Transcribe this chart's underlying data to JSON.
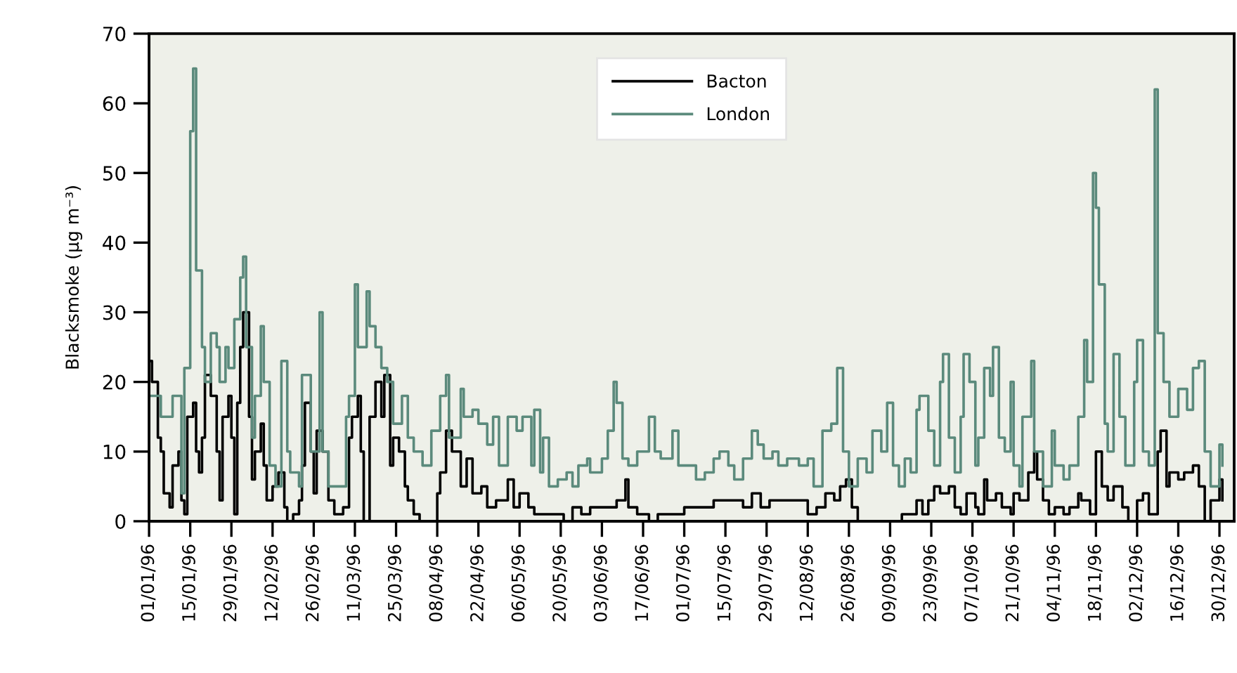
{
  "chart_data": {
    "type": "step",
    "ylabel": "Blacksmoke (µg m⁻³)",
    "xlim": [
      "1996-01-01",
      "1997-01-04"
    ],
    "xticks": [
      {
        "value": "1996-01-01",
        "label": "01/01/96"
      },
      {
        "value": "1996-01-15",
        "label": "15/01/96"
      },
      {
        "value": "1996-01-29",
        "label": "29/01/96"
      },
      {
        "value": "1996-02-12",
        "label": "12/02/96"
      },
      {
        "value": "1996-02-26",
        "label": "26/02/96"
      },
      {
        "value": "1996-03-11",
        "label": "11/03/96"
      },
      {
        "value": "1996-03-25",
        "label": "25/03/96"
      },
      {
        "value": "1996-04-08",
        "label": "08/04/96"
      },
      {
        "value": "1996-04-22",
        "label": "22/04/96"
      },
      {
        "value": "1996-05-06",
        "label": "06/05/96"
      },
      {
        "value": "1996-05-20",
        "label": "20/05/96"
      },
      {
        "value": "1996-06-03",
        "label": "03/06/96"
      },
      {
        "value": "1996-06-17",
        "label": "17/06/96"
      },
      {
        "value": "1996-07-01",
        "label": "01/07/96"
      },
      {
        "value": "1996-07-15",
        "label": "15/07/96"
      },
      {
        "value": "1996-07-29",
        "label": "29/07/96"
      },
      {
        "value": "1996-08-12",
        "label": "12/08/96"
      },
      {
        "value": "1996-08-26",
        "label": "26/08/96"
      },
      {
        "value": "1996-09-09",
        "label": "09/09/96"
      },
      {
        "value": "1996-09-23",
        "label": "23/09/96"
      },
      {
        "value": "1996-10-07",
        "label": "07/10/96"
      },
      {
        "value": "1996-10-21",
        "label": "21/10/96"
      },
      {
        "value": "1996-11-04",
        "label": "04/11/96"
      },
      {
        "value": "1996-11-18",
        "label": "18/11/96"
      },
      {
        "value": "1996-12-02",
        "label": "02/12/96"
      },
      {
        "value": "1996-12-16",
        "label": "16/12/96"
      },
      {
        "value": "1996-12-30",
        "label": "30/12/96"
      }
    ],
    "ylim": [
      0,
      70
    ],
    "yticks": [
      0,
      10,
      20,
      30,
      40,
      50,
      60,
      70
    ],
    "legend": "top",
    "series": [
      {
        "name": "Bacton",
        "color": "#000000",
        "x": [
          "1996-01-01",
          "1996-01-02",
          "1996-01-04",
          "1996-01-05",
          "1996-01-06",
          "1996-01-08",
          "1996-01-09",
          "1996-01-11",
          "1996-01-12",
          "1996-01-13",
          "1996-01-14",
          "1996-01-16",
          "1996-01-17",
          "1996-01-18",
          "1996-01-19",
          "1996-01-20",
          "1996-01-22",
          "1996-01-24",
          "1996-01-25",
          "1996-01-26",
          "1996-01-28",
          "1996-01-29",
          "1996-01-30",
          "1996-01-31",
          "1996-02-01",
          "1996-02-02",
          "1996-02-04",
          "1996-02-05",
          "1996-02-06",
          "1996-02-08",
          "1996-02-09",
          "1996-02-10",
          "1996-02-12",
          "1996-02-14",
          "1996-02-16",
          "1996-02-17",
          "1996-02-19",
          "1996-02-21",
          "1996-02-22",
          "1996-02-23",
          "1996-02-25",
          "1996-02-26",
          "1996-02-27",
          "1996-02-29",
          "1996-03-02",
          "1996-03-04",
          "1996-03-07",
          "1996-03-09",
          "1996-03-10",
          "1996-03-12",
          "1996-03-13",
          "1996-03-14",
          "1996-03-16",
          "1996-03-18",
          "1996-03-20",
          "1996-03-21",
          "1996-03-23",
          "1996-03-24",
          "1996-03-26",
          "1996-03-28",
          "1996-03-29",
          "1996-03-31",
          "1996-04-02",
          "1996-04-08",
          "1996-04-09",
          "1996-04-11",
          "1996-04-13",
          "1996-04-16",
          "1996-04-18",
          "1996-04-20",
          "1996-04-23",
          "1996-04-25",
          "1996-04-28",
          "1996-05-02",
          "1996-05-04",
          "1996-05-06",
          "1996-05-09",
          "1996-05-11",
          "1996-05-14",
          "1996-05-18",
          "1996-05-21",
          "1996-05-24",
          "1996-05-27",
          "1996-05-30",
          "1996-06-03",
          "1996-06-06",
          "1996-06-08",
          "1996-06-11",
          "1996-06-12",
          "1996-06-15",
          "1996-06-19",
          "1996-06-22",
          "1996-06-28",
          "1996-07-01",
          "1996-07-08",
          "1996-07-11",
          "1996-07-17",
          "1996-07-21",
          "1996-07-24",
          "1996-07-27",
          "1996-07-30",
          "1996-08-05",
          "1996-08-09",
          "1996-08-12",
          "1996-08-15",
          "1996-08-18",
          "1996-08-21",
          "1996-08-23",
          "1996-08-25",
          "1996-08-27",
          "1996-08-29",
          "1996-09-11",
          "1996-09-13",
          "1996-09-15",
          "1996-09-18",
          "1996-09-20",
          "1996-09-22",
          "1996-09-24",
          "1996-09-26",
          "1996-09-29",
          "1996-10-01",
          "1996-10-03",
          "1996-10-05",
          "1996-10-08",
          "1996-10-09",
          "1996-10-11",
          "1996-10-12",
          "1996-10-15",
          "1996-10-17",
          "1996-10-20",
          "1996-10-21",
          "1996-10-23",
          "1996-10-26",
          "1996-10-28",
          "1996-10-29",
          "1996-10-31",
          "1996-11-02",
          "1996-11-04",
          "1996-11-07",
          "1996-11-09",
          "1996-11-12",
          "1996-11-13",
          "1996-11-16",
          "1996-11-18",
          "1996-11-20",
          "1996-11-22",
          "1996-11-24",
          "1996-11-27",
          "1996-11-29",
          "1996-12-02",
          "1996-12-04",
          "1996-12-06",
          "1996-12-09",
          "1996-12-10",
          "1996-12-12",
          "1996-12-13",
          "1996-12-16",
          "1996-12-18",
          "1996-12-21",
          "1996-12-23",
          "1996-12-25",
          "1996-12-27",
          "1996-12-30",
          "1996-12-31"
        ],
        "values": [
          23,
          20,
          12,
          10,
          4,
          2,
          8,
          10,
          3,
          1,
          15,
          17,
          10,
          7,
          12,
          21,
          18,
          10,
          3,
          15,
          18,
          12,
          1,
          17,
          25,
          30,
          15,
          6,
          10,
          14,
          8,
          3,
          5,
          7,
          2,
          0,
          1,
          3,
          8,
          17,
          10,
          4,
          13,
          10,
          3,
          1,
          2,
          12,
          15,
          18,
          10,
          0,
          15,
          20,
          15,
          21,
          8,
          12,
          10,
          5,
          3,
          1,
          0,
          4,
          7,
          13,
          10,
          5,
          9,
          4,
          5,
          2,
          3,
          6,
          2,
          4,
          2,
          1,
          1,
          1,
          0,
          2,
          1,
          2,
          2,
          2,
          3,
          6,
          2,
          1,
          0,
          1,
          1,
          2,
          2,
          3,
          3,
          2,
          4,
          2,
          3,
          3,
          3,
          1,
          2,
          4,
          3,
          5,
          6,
          2,
          0,
          0,
          1,
          1,
          3,
          1,
          3,
          5,
          4,
          5,
          2,
          1,
          4,
          2,
          1,
          6,
          3,
          4,
          2,
          1,
          4,
          3,
          7,
          10,
          6,
          3,
          1,
          2,
          1,
          2,
          4,
          3,
          1,
          10,
          5,
          3,
          5,
          2,
          0,
          3,
          4,
          1,
          10,
          13,
          5,
          7,
          6,
          7,
          8,
          5,
          0,
          3,
          6,
          3
        ]
      },
      {
        "name": "London",
        "color": "#5b8a7c",
        "x": [
          "1996-01-01",
          "1996-01-05",
          "1996-01-09",
          "1996-01-12",
          "1996-01-13",
          "1996-01-15",
          "1996-01-16",
          "1996-01-17",
          "1996-01-19",
          "1996-01-20",
          "1996-01-22",
          "1996-01-24",
          "1996-01-25",
          "1996-01-27",
          "1996-01-28",
          "1996-01-30",
          "1996-02-01",
          "1996-02-02",
          "1996-02-03",
          "1996-02-05",
          "1996-02-06",
          "1996-02-08",
          "1996-02-09",
          "1996-02-11",
          "1996-02-13",
          "1996-02-15",
          "1996-02-17",
          "1996-02-18",
          "1996-02-21",
          "1996-02-22",
          "1996-02-25",
          "1996-02-28",
          "1996-02-29",
          "1996-03-02",
          "1996-03-05",
          "1996-03-08",
          "1996-03-09",
          "1996-03-11",
          "1996-03-12",
          "1996-03-15",
          "1996-03-16",
          "1996-03-18",
          "1996-03-20",
          "1996-03-22",
          "1996-03-24",
          "1996-03-27",
          "1996-03-29",
          "1996-03-31",
          "1996-04-03",
          "1996-04-06",
          "1996-04-09",
          "1996-04-11",
          "1996-04-12",
          "1996-04-16",
          "1996-04-17",
          "1996-04-20",
          "1996-04-22",
          "1996-04-25",
          "1996-04-27",
          "1996-04-29",
          "1996-05-02",
          "1996-05-05",
          "1996-05-07",
          "1996-05-10",
          "1996-05-11",
          "1996-05-13",
          "1996-05-14",
          "1996-05-16",
          "1996-05-19",
          "1996-05-22",
          "1996-05-24",
          "1996-05-26",
          "1996-05-29",
          "1996-05-30",
          "1996-06-03",
          "1996-06-05",
          "1996-06-07",
          "1996-06-08",
          "1996-06-10",
          "1996-06-12",
          "1996-06-15",
          "1996-06-19",
          "1996-06-21",
          "1996-06-23",
          "1996-06-27",
          "1996-06-29",
          "1996-07-01",
          "1996-07-05",
          "1996-07-08",
          "1996-07-11",
          "1996-07-13",
          "1996-07-16",
          "1996-07-18",
          "1996-07-21",
          "1996-07-24",
          "1996-07-26",
          "1996-07-28",
          "1996-07-31",
          "1996-08-02",
          "1996-08-05",
          "1996-08-09",
          "1996-08-12",
          "1996-08-14",
          "1996-08-17",
          "1996-08-20",
          "1996-08-22",
          "1996-08-24",
          "1996-08-26",
          "1996-08-29",
          "1996-09-01",
          "1996-09-03",
          "1996-09-06",
          "1996-09-08",
          "1996-09-10",
          "1996-09-12",
          "1996-09-14",
          "1996-09-16",
          "1996-09-18",
          "1996-09-19",
          "1996-09-22",
          "1996-09-24",
          "1996-09-26",
          "1996-09-27",
          "1996-09-29",
          "1996-10-01",
          "1996-10-03",
          "1996-10-04",
          "1996-10-06",
          "1996-10-08",
          "1996-10-09",
          "1996-10-11",
          "1996-10-13",
          "1996-10-14",
          "1996-10-16",
          "1996-10-18",
          "1996-10-20",
          "1996-10-21",
          "1996-10-23",
          "1996-10-24",
          "1996-10-27",
          "1996-10-28",
          "1996-10-31",
          "1996-11-03",
          "1996-11-04",
          "1996-11-07",
          "1996-11-09",
          "1996-11-12",
          "1996-11-14",
          "1996-11-15",
          "1996-11-17",
          "1996-11-18",
          "1996-11-19",
          "1996-11-21",
          "1996-11-22",
          "1996-11-24",
          "1996-11-26",
          "1996-11-28",
          "1996-12-01",
          "1996-12-02",
          "1996-12-04",
          "1996-12-06",
          "1996-12-08",
          "1996-12-09",
          "1996-12-11",
          "1996-12-13",
          "1996-12-16",
          "1996-12-19",
          "1996-12-21",
          "1996-12-23",
          "1996-12-25",
          "1996-12-27",
          "1996-12-30",
          "1996-12-31"
        ],
        "values": [
          18,
          15,
          18,
          4,
          22,
          56,
          65,
          36,
          25,
          20,
          27,
          25,
          20,
          25,
          22,
          29,
          35,
          38,
          25,
          12,
          18,
          28,
          20,
          8,
          5,
          23,
          10,
          7,
          5,
          21,
          10,
          30,
          10,
          5,
          5,
          15,
          18,
          34,
          25,
          33,
          28,
          25,
          22,
          20,
          14,
          18,
          12,
          10,
          8,
          13,
          18,
          21,
          12,
          19,
          15,
          16,
          14,
          11,
          15,
          8,
          15,
          13,
          15,
          8,
          16,
          7,
          12,
          5,
          6,
          7,
          5,
          8,
          9,
          7,
          9,
          13,
          20,
          17,
          9,
          8,
          10,
          15,
          10,
          9,
          13,
          8,
          8,
          6,
          7,
          9,
          10,
          8,
          6,
          9,
          13,
          11,
          9,
          10,
          8,
          9,
          8,
          9,
          5,
          13,
          14,
          22,
          10,
          5,
          9,
          7,
          13,
          10,
          17,
          8,
          5,
          9,
          7,
          16,
          18,
          13,
          8,
          20,
          24,
          12,
          7,
          15,
          24,
          20,
          8,
          12,
          22,
          18,
          25,
          12,
          10,
          20,
          8,
          5,
          15,
          23,
          10,
          5,
          13,
          8,
          6,
          8,
          15,
          26,
          20,
          50,
          45,
          34,
          14,
          10,
          24,
          15,
          8,
          20,
          26,
          10,
          8,
          62,
          27,
          20,
          15,
          19,
          16,
          22,
          23,
          10,
          5,
          11,
          8
        ]
      }
    ]
  }
}
